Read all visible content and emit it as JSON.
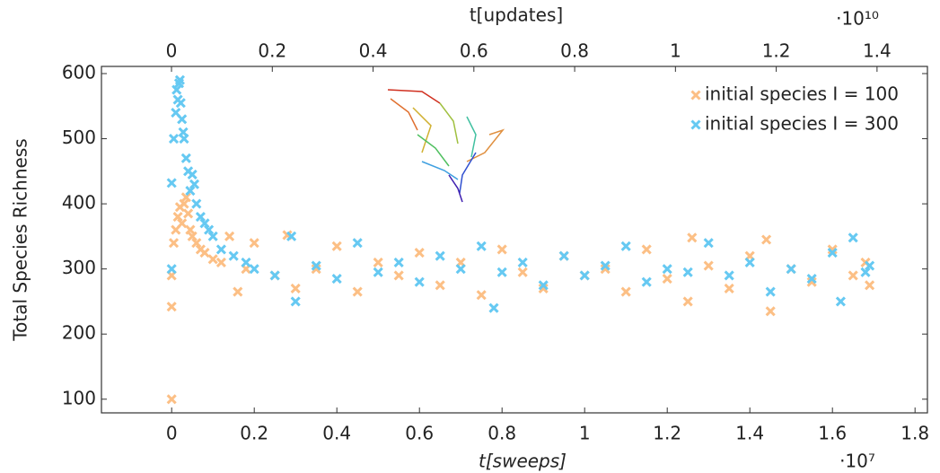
{
  "chart_data": {
    "type": "scatter",
    "xlabel": "t[sweeps]",
    "x_exponent": "·10⁷",
    "x2label": "t[updates]",
    "x2_exponent": "·10¹⁰",
    "ylabel": "Total Species Richness",
    "xlim": [
      -0.17,
      1.83
    ],
    "xticks": [
      0,
      0.2,
      0.4,
      0.6,
      0.8,
      1,
      1.2,
      1.4,
      1.6,
      1.8
    ],
    "x2lim": [
      -0.139,
      1.5
    ],
    "x2ticks": [
      0,
      0.2,
      0.4,
      0.6,
      0.8,
      1,
      1.2,
      1.4
    ],
    "ylim": [
      79,
      611
    ],
    "yticks": [
      100,
      200,
      300,
      400,
      500,
      600
    ],
    "legend": "upper right",
    "grid": false,
    "series": [
      {
        "name": "initial species I = 100",
        "color": "#fcbf85",
        "x": [
          0,
          0,
          0,
          0.005,
          0.01,
          0.015,
          0.02,
          0.025,
          0.03,
          0.035,
          0.04,
          0.045,
          0.05,
          0.06,
          0.07,
          0.08,
          0.1,
          0.12,
          0.14,
          0.16,
          0.18,
          0.2,
          0.25,
          0.28,
          0.3,
          0.35,
          0.4,
          0.45,
          0.5,
          0.55,
          0.6,
          0.65,
          0.7,
          0.75,
          0.8,
          0.85,
          0.9,
          0.95,
          1.0,
          1.05,
          1.1,
          1.15,
          1.2,
          1.25,
          1.26,
          1.3,
          1.35,
          1.4,
          1.44,
          1.45,
          1.5,
          1.55,
          1.6,
          1.65,
          1.68,
          1.69
        ],
        "values": [
          100,
          242,
          290,
          340,
          360,
          380,
          395,
          370,
          400,
          410,
          385,
          360,
          350,
          340,
          330,
          325,
          315,
          310,
          350,
          265,
          300,
          340,
          290,
          352,
          270,
          300,
          335,
          265,
          310,
          290,
          325,
          275,
          310,
          260,
          330,
          295,
          270,
          320,
          290,
          300,
          265,
          330,
          285,
          250,
          348,
          305,
          270,
          320,
          345,
          235,
          300,
          280,
          330,
          290,
          310,
          275
        ]
      },
      {
        "name": "initial species I = 300",
        "color": "#66c9f2",
        "x": [
          0,
          0,
          0.005,
          0.01,
          0.012,
          0.015,
          0.018,
          0.02,
          0.022,
          0.025,
          0.028,
          0.03,
          0.035,
          0.04,
          0.045,
          0.05,
          0.055,
          0.06,
          0.07,
          0.08,
          0.09,
          0.1,
          0.12,
          0.15,
          0.18,
          0.2,
          0.25,
          0.29,
          0.3,
          0.35,
          0.4,
          0.45,
          0.5,
          0.55,
          0.6,
          0.65,
          0.7,
          0.75,
          0.78,
          0.8,
          0.85,
          0.9,
          0.95,
          1.0,
          1.05,
          1.1,
          1.15,
          1.2,
          1.25,
          1.3,
          1.35,
          1.4,
          1.45,
          1.5,
          1.55,
          1.6,
          1.62,
          1.65,
          1.68,
          1.69
        ],
        "values": [
          300,
          432,
          500,
          540,
          575,
          560,
          585,
          590,
          555,
          530,
          510,
          500,
          470,
          450,
          420,
          445,
          430,
          400,
          380,
          370,
          360,
          350,
          330,
          320,
          310,
          300,
          290,
          350,
          250,
          305,
          285,
          340,
          295,
          310,
          280,
          320,
          300,
          335,
          240,
          295,
          310,
          275,
          320,
          290,
          305,
          335,
          280,
          300,
          295,
          340,
          290,
          310,
          265,
          300,
          285,
          325,
          250,
          348,
          295,
          305
        ]
      }
    ]
  }
}
